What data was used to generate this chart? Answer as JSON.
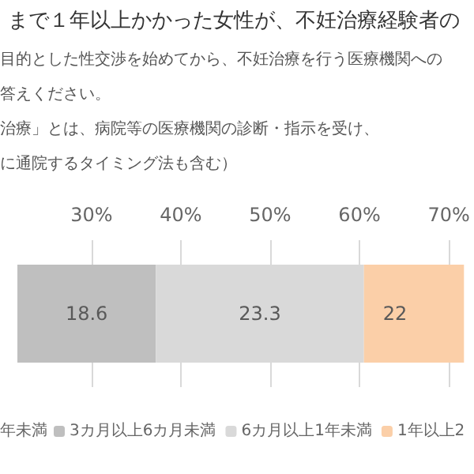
{
  "chart_data": {
    "type": "bar",
    "orientation": "horizontal",
    "title": "まで１年以上かかった女性が、不妊治療経験者の",
    "subtitle": "目的とした性交渉を始めてから、不妊治療を行う医療機関への",
    "categories": [
      null
    ],
    "series": [
      {
        "name": "3カ月以上6カ月未満",
        "color": "#bfbfbf",
        "values": [
          18.6
        ],
        "base": [
          18.6
        ],
        "value_labels": [
          "18.6"
        ]
      },
      {
        "name": "6カ月以上1年未満",
        "color": "#d9d9d9",
        "values": [
          23.3
        ],
        "base": [
          37.2
        ],
        "value_labels": [
          "23.3"
        ]
      },
      {
        "name": "1年以上2",
        "color": "#fbcfa8",
        "values": [
          22
        ],
        "base": [
          60.5
        ],
        "value_labels": [
          "22"
        ]
      }
    ],
    "annotations": [
      "答えください。",
      "治療」とは、病院等の医療機関の診断・指示を受け、",
      "に通院するタイミング法も含む）",
      "年未満"
    ],
    "xlim": [
      21.7,
      71.7
    ],
    "xticks": [
      {
        "value": 30,
        "label": "30%"
      },
      {
        "value": 40,
        "label": "40%"
      },
      {
        "value": 50,
        "label": "50%"
      },
      {
        "value": 60,
        "label": "60%"
      },
      {
        "value": 70,
        "label": "70%"
      }
    ],
    "grid": "x",
    "legend": "bottom"
  }
}
